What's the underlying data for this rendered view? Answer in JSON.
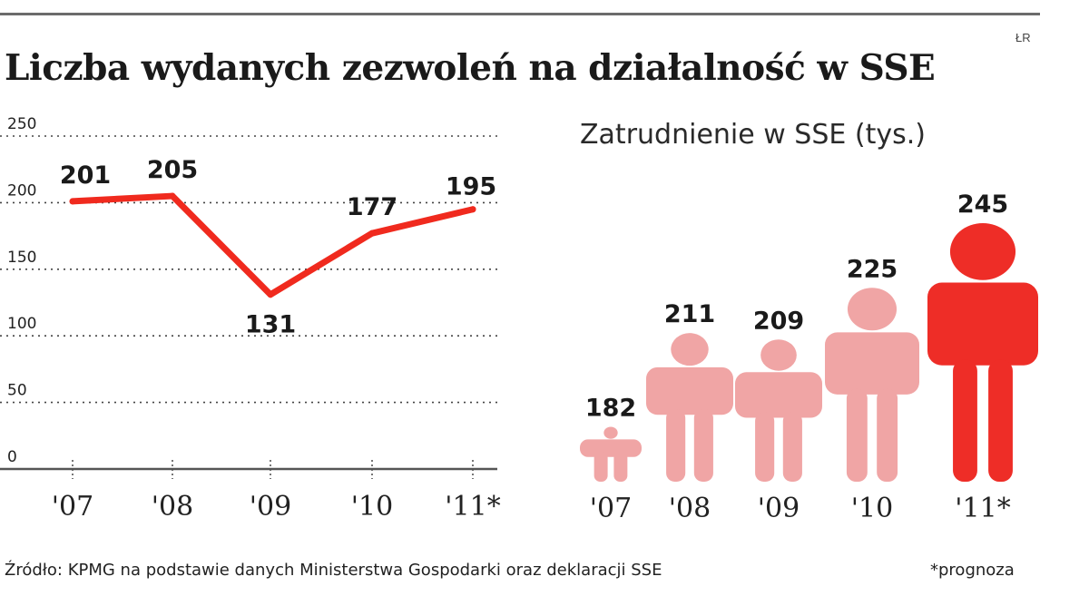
{
  "header": {
    "title": "Liczba wydanych zezwoleń na działalność w SSE",
    "credit": "ŁR"
  },
  "footer": {
    "source": "Źródło: KPMG na podstawie danych Ministerstwa Gospodarki oraz deklaracji SSE",
    "note": "*prognoza"
  },
  "colors": {
    "line": "#f02a1e",
    "figure_light": "#f0a5a5",
    "figure_accent": "#ee2d27",
    "grid": "#444444",
    "text": "#222222"
  },
  "chart_data": [
    {
      "type": "line",
      "title": "Liczba wydanych zezwoleń na działalność w SSE",
      "categories": [
        "'07",
        "'08",
        "'09",
        "'10",
        "'11*"
      ],
      "series": [
        {
          "values": [
            201,
            205,
            131,
            177,
            195
          ]
        }
      ],
      "data_labels": [
        "201",
        "205",
        "131",
        "177",
        "195"
      ],
      "y_ticks": [
        "0",
        "50",
        "100",
        "150",
        "200",
        "250"
      ],
      "ylim": [
        0,
        250
      ],
      "grid": "dotted horizontal",
      "legend": "none"
    },
    {
      "type": "bar",
      "subtitle": "Zatrudnienie w SSE (tys.)",
      "marks": "human figure icons",
      "categories": [
        "'07",
        "'08",
        "'09",
        "'10",
        "'11*"
      ],
      "series": [
        {
          "values": [
            182,
            211,
            209,
            225,
            245
          ]
        }
      ],
      "data_labels": [
        "182",
        "211",
        "209",
        "225",
        "245"
      ],
      "highlight_index": 4,
      "legend": "none"
    }
  ]
}
